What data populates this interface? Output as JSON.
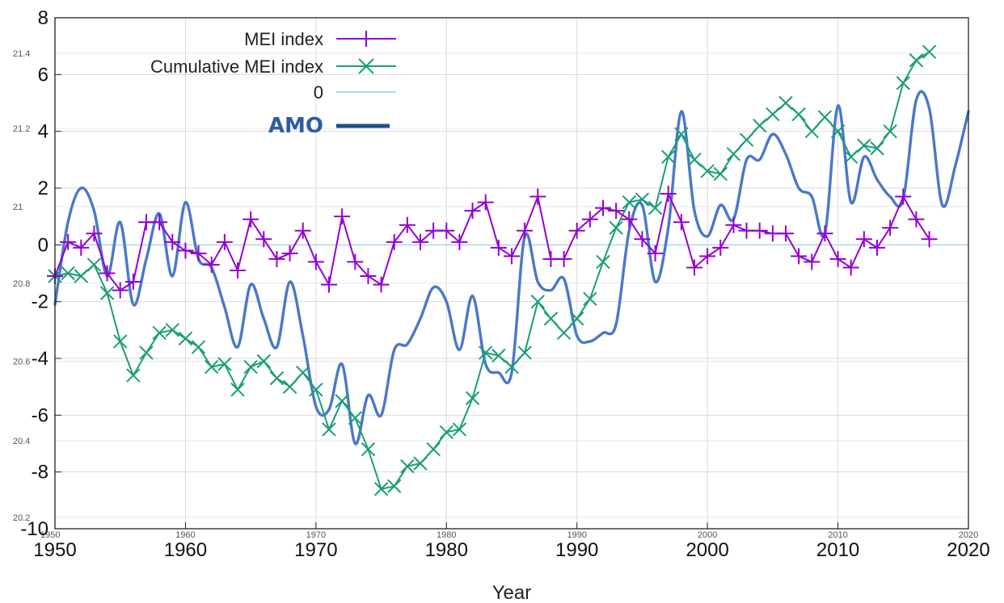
{
  "chart_data": {
    "type": "line",
    "xlabel": "Year",
    "ylabel": "",
    "xlim": [
      1950,
      2020
    ],
    "ylim": [
      -10,
      8
    ],
    "grid": true,
    "legend_position": "top-center",
    "x_ticks": [
      1950,
      1960,
      1970,
      1980,
      1990,
      2000,
      2010,
      2020
    ],
    "y_ticks": [
      8,
      6,
      4,
      2,
      0,
      -2,
      -4,
      -6,
      -8,
      -10
    ],
    "x_ticks_secondary": [
      1950,
      1960,
      1970,
      1980,
      1990,
      2000,
      2010,
      2020
    ],
    "amo_axis_ticks": [
      {
        "label": "21.4",
        "value": 6.75
      },
      {
        "label": "21.2",
        "value": 4.1
      },
      {
        "label": "21",
        "value": 1.35
      },
      {
        "label": "20.8",
        "value": -1.35
      },
      {
        "label": "20.6",
        "value": -4.1
      },
      {
        "label": "20.4",
        "value": -6.9
      },
      {
        "label": "20.2",
        "value": -9.6
      }
    ],
    "series": [
      {
        "name": "MEI index",
        "color": "#9400d3",
        "marker": "plus",
        "x": [
          1950,
          1951,
          1952,
          1953,
          1954,
          1955,
          1956,
          1957,
          1958,
          1959,
          1960,
          1961,
          1962,
          1963,
          1964,
          1965,
          1966,
          1967,
          1968,
          1969,
          1970,
          1971,
          1972,
          1973,
          1974,
          1975,
          1976,
          1977,
          1978,
          1979,
          1980,
          1981,
          1982,
          1983,
          1984,
          1985,
          1986,
          1987,
          1988,
          1989,
          1990,
          1991,
          1992,
          1993,
          1994,
          1995,
          1996,
          1997,
          1998,
          1999,
          2000,
          2001,
          2002,
          2003,
          2004,
          2005,
          2006,
          2007,
          2008,
          2009,
          2010,
          2011,
          2012,
          2013,
          2014,
          2015,
          2016,
          2017
        ],
        "y": [
          -1.1,
          0.1,
          -0.1,
          0.4,
          -1.0,
          -1.6,
          -1.3,
          0.8,
          0.8,
          0.1,
          -0.2,
          -0.3,
          -0.7,
          0.1,
          -0.9,
          0.9,
          0.2,
          -0.5,
          -0.3,
          0.5,
          -0.6,
          -1.4,
          1.0,
          -0.6,
          -1.1,
          -1.4,
          0.1,
          0.7,
          0.1,
          0.5,
          0.5,
          0.1,
          1.2,
          1.5,
          -0.1,
          -0.4,
          0.5,
          1.7,
          -0.5,
          -0.5,
          0.5,
          0.9,
          1.3,
          1.2,
          0.9,
          0.2,
          -0.3,
          1.8,
          0.8,
          -0.8,
          -0.4,
          -0.1,
          0.7,
          0.5,
          0.5,
          0.4,
          0.4,
          -0.4,
          -0.6,
          0.4,
          -0.5,
          -0.8,
          0.2,
          -0.1,
          0.6,
          1.7,
          0.9,
          0.2
        ]
      },
      {
        "name": "Cumulative MEI index",
        "color": "#1a9e77",
        "marker": "cross",
        "x": [
          1950,
          1951,
          1952,
          1953,
          1954,
          1955,
          1956,
          1957,
          1958,
          1959,
          1960,
          1961,
          1962,
          1963,
          1964,
          1965,
          1966,
          1967,
          1968,
          1969,
          1970,
          1971,
          1972,
          1973,
          1974,
          1975,
          1976,
          1977,
          1978,
          1979,
          1980,
          1981,
          1982,
          1983,
          1984,
          1985,
          1986,
          1987,
          1988,
          1989,
          1990,
          1991,
          1992,
          1993,
          1994,
          1995,
          1996,
          1997,
          1998,
          1999,
          2000,
          2001,
          2002,
          2003,
          2004,
          2005,
          2006,
          2007,
          2008,
          2009,
          2010,
          2011,
          2012,
          2013,
          2014,
          2015,
          2016,
          2017
        ],
        "y": [
          -1.1,
          -1.0,
          -1.1,
          -0.7,
          -1.7,
          -3.4,
          -4.6,
          -3.8,
          -3.1,
          -3.0,
          -3.3,
          -3.6,
          -4.3,
          -4.2,
          -5.1,
          -4.3,
          -4.1,
          -4.7,
          -5.0,
          -4.5,
          -5.1,
          -6.5,
          -5.5,
          -6.1,
          -7.2,
          -8.6,
          -8.5,
          -7.8,
          -7.7,
          -7.2,
          -6.6,
          -6.5,
          -5.4,
          -3.8,
          -3.9,
          -4.3,
          -3.8,
          -2.0,
          -2.6,
          -3.1,
          -2.6,
          -1.9,
          -0.6,
          0.6,
          1.5,
          1.6,
          1.3,
          3.1,
          3.9,
          3.0,
          2.6,
          2.5,
          3.2,
          3.7,
          4.2,
          4.6,
          5.0,
          4.6,
          4.0,
          4.5,
          4.0,
          3.1,
          3.5,
          3.4,
          4.0,
          5.7,
          6.5,
          6.8
        ]
      },
      {
        "name": "0",
        "color": "#a9d8f0",
        "marker": "none",
        "x": [
          1950,
          2020
        ],
        "y": [
          0,
          0
        ]
      },
      {
        "name": "AMO",
        "color": "#4a78c8",
        "marker": "none",
        "smooth": true,
        "x": [
          1950,
          1951,
          1952,
          1953,
          1954,
          1955,
          1956,
          1957,
          1958,
          1959,
          1960,
          1961,
          1962,
          1963,
          1964,
          1965,
          1966,
          1967,
          1968,
          1969,
          1970,
          1971,
          1972,
          1973,
          1974,
          1975,
          1976,
          1977,
          1978,
          1979,
          1980,
          1981,
          1982,
          1983,
          1984,
          1985,
          1986,
          1987,
          1988,
          1989,
          1990,
          1991,
          1992,
          1993,
          1994,
          1995,
          1996,
          1997,
          1998,
          1999,
          2000,
          2001,
          2002,
          2003,
          2004,
          2005,
          2006,
          2007,
          2008,
          2009,
          2010,
          2011,
          2012,
          2013,
          2014,
          2015,
          2016,
          2017,
          2018,
          2019,
          2020
        ],
        "y": [
          -2.1,
          0.8,
          2.0,
          1.2,
          -1.1,
          0.8,
          -2.1,
          -0.5,
          1.1,
          -1.1,
          1.5,
          -0.5,
          -0.8,
          -2.2,
          -3.6,
          -1.4,
          -2.6,
          -3.6,
          -1.3,
          -3.2,
          -5.7,
          -5.8,
          -4.2,
          -7.0,
          -5.3,
          -6.0,
          -3.7,
          -3.5,
          -2.6,
          -1.5,
          -2.0,
          -3.7,
          -1.8,
          -4.2,
          -4.5,
          -4.5,
          0.3,
          -1.3,
          -1.6,
          -1.2,
          -3.2,
          -3.4,
          -3.1,
          -2.8,
          0.5,
          1.4,
          -1.3,
          0.6,
          4.7,
          1.2,
          0.3,
          1.4,
          0.9,
          3.0,
          3.0,
          3.9,
          3.2,
          2.0,
          1.7,
          0.4,
          4.9,
          1.5,
          3.1,
          2.3,
          1.7,
          1.6,
          5.1,
          4.8,
          1.4,
          2.8,
          4.7
        ]
      }
    ]
  }
}
